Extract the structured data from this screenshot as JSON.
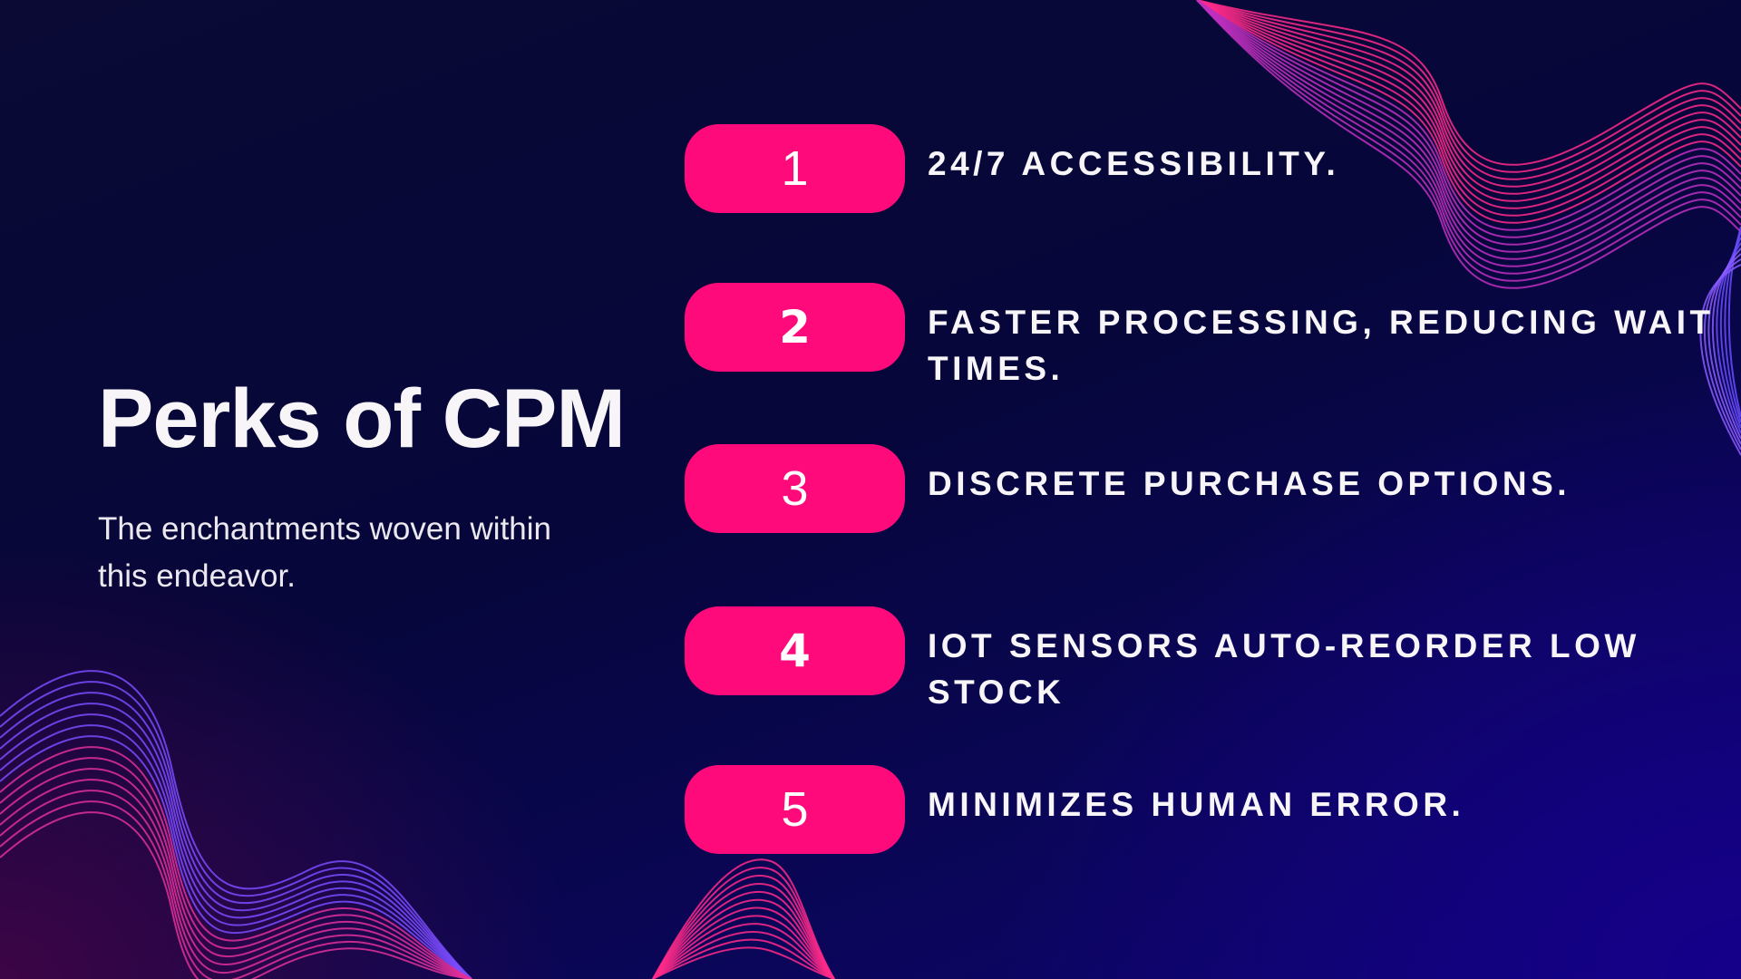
{
  "title": "Perks of CPM",
  "subtitle": "The enchantments woven within this endeavor.",
  "items": [
    {
      "number": "1",
      "text": "24/7 ACCESSIBILITY."
    },
    {
      "number": "2",
      "text": "FASTER PROCESSING, REDUCING WAIT TIMES."
    },
    {
      "number": "3",
      "text": "DISCRETE PURCHASE OPTIONS."
    },
    {
      "number": "4",
      "text": "IOT SENSORS AUTO-REORDER LOW STOCK"
    },
    {
      "number": "5",
      "text": "MINIMIZES HUMAN ERROR."
    }
  ],
  "colors": {
    "accent": "#ff0a7a",
    "background_top": "#06063a",
    "background_bottom_left": "#3d0545",
    "background_bottom_right": "#15008a"
  }
}
